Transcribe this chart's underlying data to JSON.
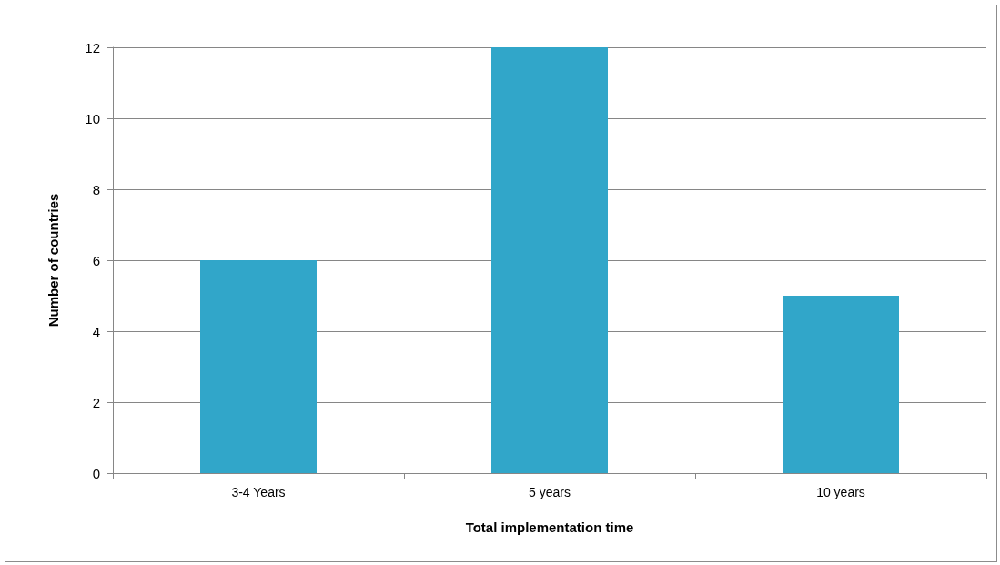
{
  "chart_data": {
    "type": "bar",
    "xlabel": "Total implementation time",
    "ylabel": "Number of countries",
    "categories": [
      "3-4 Years",
      "5 years",
      "10 years"
    ],
    "values": [
      6,
      12,
      5
    ],
    "color": "#31a6c9",
    "ylim": [
      0,
      12
    ],
    "yticks": [
      0,
      2,
      4,
      6,
      8,
      10,
      12
    ],
    "grid": "y"
  }
}
